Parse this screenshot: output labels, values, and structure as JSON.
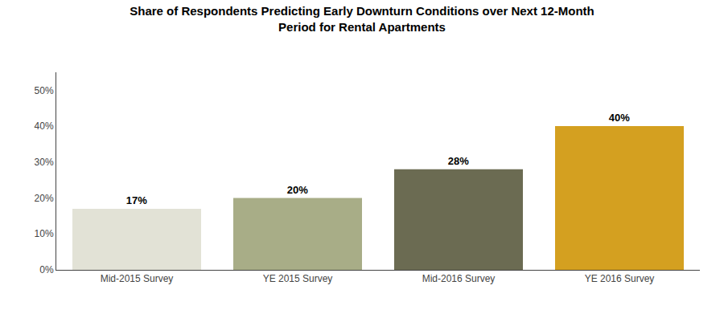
{
  "chart_data": {
    "type": "bar",
    "title": "Share of Respondents Predicting Early Downturn Conditions over Next 12-Month\nPeriod for Rental Apartments",
    "categories": [
      "Mid-2015 Survey",
      "YE 2015 Survey",
      "Mid-2016 Survey",
      "YE 2016 Survey"
    ],
    "values": [
      0.17,
      0.2,
      0.28,
      0.4
    ],
    "value_labels": [
      "17%",
      "20%",
      "28%",
      "40%"
    ],
    "colors": [
      "#e2e2d6",
      "#a8ad87",
      "#6b6b52",
      "#d4a020"
    ],
    "data_labels": true,
    "ylim": [
      0,
      0.55
    ],
    "yticks": [
      {
        "value": 0.0,
        "label": "0%"
      },
      {
        "value": 0.1,
        "label": "10%"
      },
      {
        "value": 0.2,
        "label": "20%"
      },
      {
        "value": 0.3,
        "label": "30%"
      },
      {
        "value": 0.4,
        "label": "40%"
      },
      {
        "value": 0.5,
        "label": "50%"
      }
    ],
    "grid": false
  }
}
